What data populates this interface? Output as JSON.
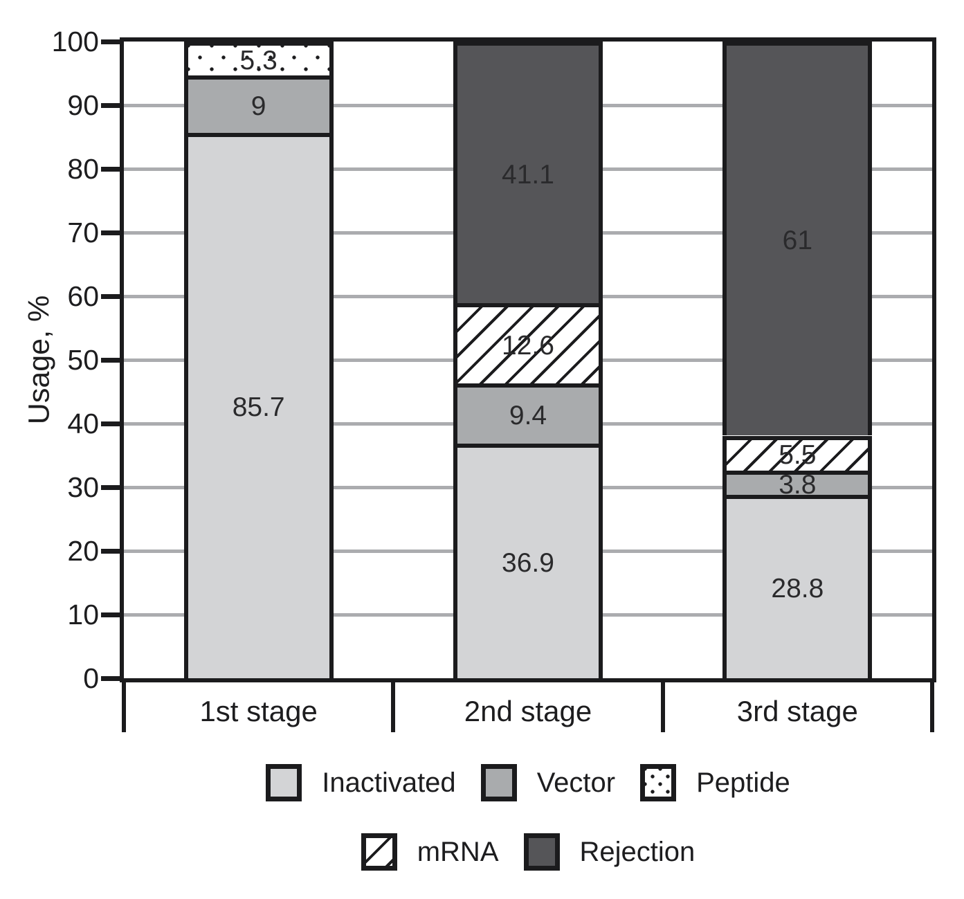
{
  "chart_data": {
    "type": "bar",
    "stacked": true,
    "title": "",
    "ylabel": "Usage, %",
    "xlabel": "",
    "ylim": [
      0,
      100
    ],
    "yticks": [
      0,
      10,
      20,
      30,
      40,
      50,
      60,
      70,
      80,
      90,
      100
    ],
    "grid": "horizontal",
    "legend_position": "bottom",
    "categories": [
      "1st stage",
      "2nd stage",
      "3rd stage"
    ],
    "series": [
      {
        "name": "Inactivated",
        "pattern": "solid",
        "fill": "#d3d4d6",
        "values": [
          85.7,
          36.9,
          28.8
        ]
      },
      {
        "name": "Vector",
        "pattern": "solid",
        "fill": "#a9abad",
        "values": [
          9,
          9.4,
          3.8
        ]
      },
      {
        "name": "Peptide",
        "pattern": "dots",
        "fill": "#ffffff",
        "values": [
          5.3,
          null,
          null
        ]
      },
      {
        "name": "mRNA",
        "pattern": "hatch",
        "fill": "#ffffff",
        "values": [
          null,
          12.6,
          5.5
        ]
      },
      {
        "name": "Rejection",
        "pattern": "solid",
        "fill": "#555558",
        "values": [
          null,
          41.1,
          61
        ]
      }
    ],
    "legend_rows": [
      [
        "Inactivated",
        "Vector",
        "Peptide"
      ],
      [
        "mRNA",
        "Rejection"
      ]
    ],
    "colors": {
      "line": "#1b1b1d",
      "grid": "#abacaf",
      "text": "#1d1d1f",
      "label": "#2a2a2c"
    }
  }
}
